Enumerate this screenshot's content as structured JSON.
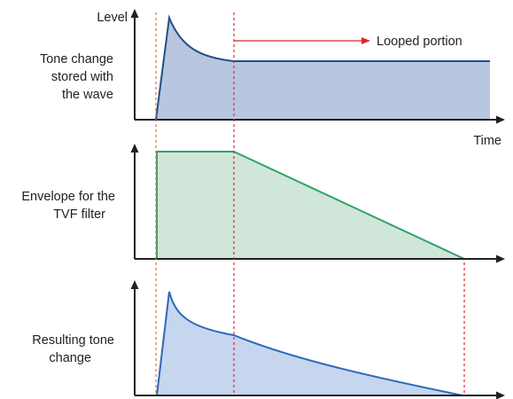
{
  "labels": {
    "level": "Level",
    "time": "Time",
    "looped_portion": "Looped portion",
    "panel1": [
      "Tone change",
      "stored with",
      "the wave"
    ],
    "panel2": [
      "Envelope for the",
      "TVF filter"
    ],
    "panel3": [
      "Resulting tone",
      "change"
    ]
  },
  "colors": {
    "axis": "#231f20",
    "guide": "#e0703a",
    "arrow": "#d8282f",
    "panel1_stroke": "#1f4e8c",
    "panel1_fill": "#b9c6df",
    "panel2_stroke": "#2ea36a",
    "panel2_fill": "#cfe6d8",
    "panel3_stroke": "#2c68b8",
    "panel3_fill": "#c6d6ee"
  }
}
